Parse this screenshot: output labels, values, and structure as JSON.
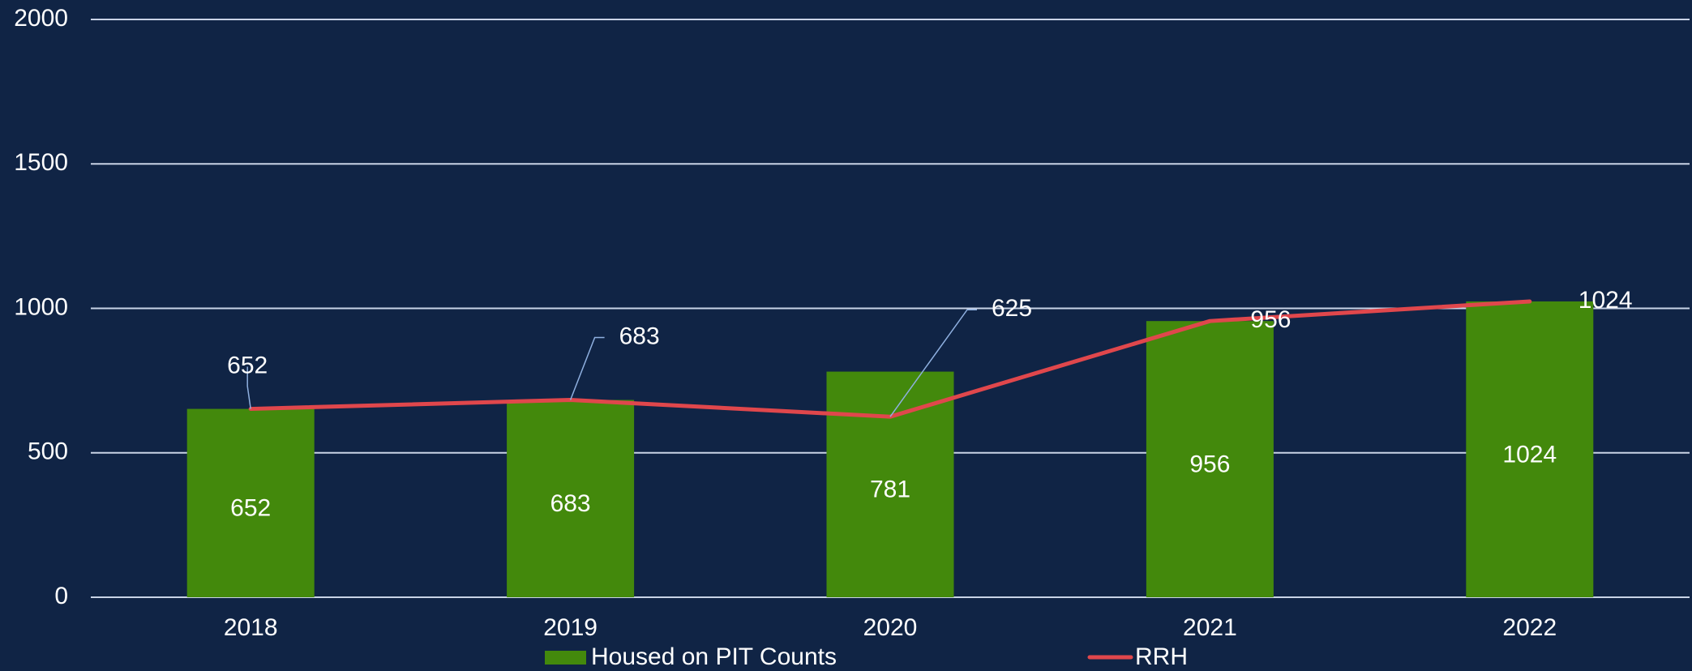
{
  "chart_data": {
    "type": "bar",
    "categories": [
      "2018",
      "2019",
      "2020",
      "2021",
      "2022"
    ],
    "series": [
      {
        "name": "Housed on PIT Counts",
        "type": "bar",
        "color": "#43890c",
        "values": [
          652,
          683,
          781,
          956,
          1024
        ]
      },
      {
        "name": "RRH",
        "type": "line",
        "color": "#e0474c",
        "values": [
          652,
          683,
          625,
          956,
          1024
        ]
      }
    ],
    "ylim": [
      0,
      2000
    ],
    "yticks": [
      0,
      500,
      1000,
      1500,
      2000
    ],
    "grid": true
  }
}
